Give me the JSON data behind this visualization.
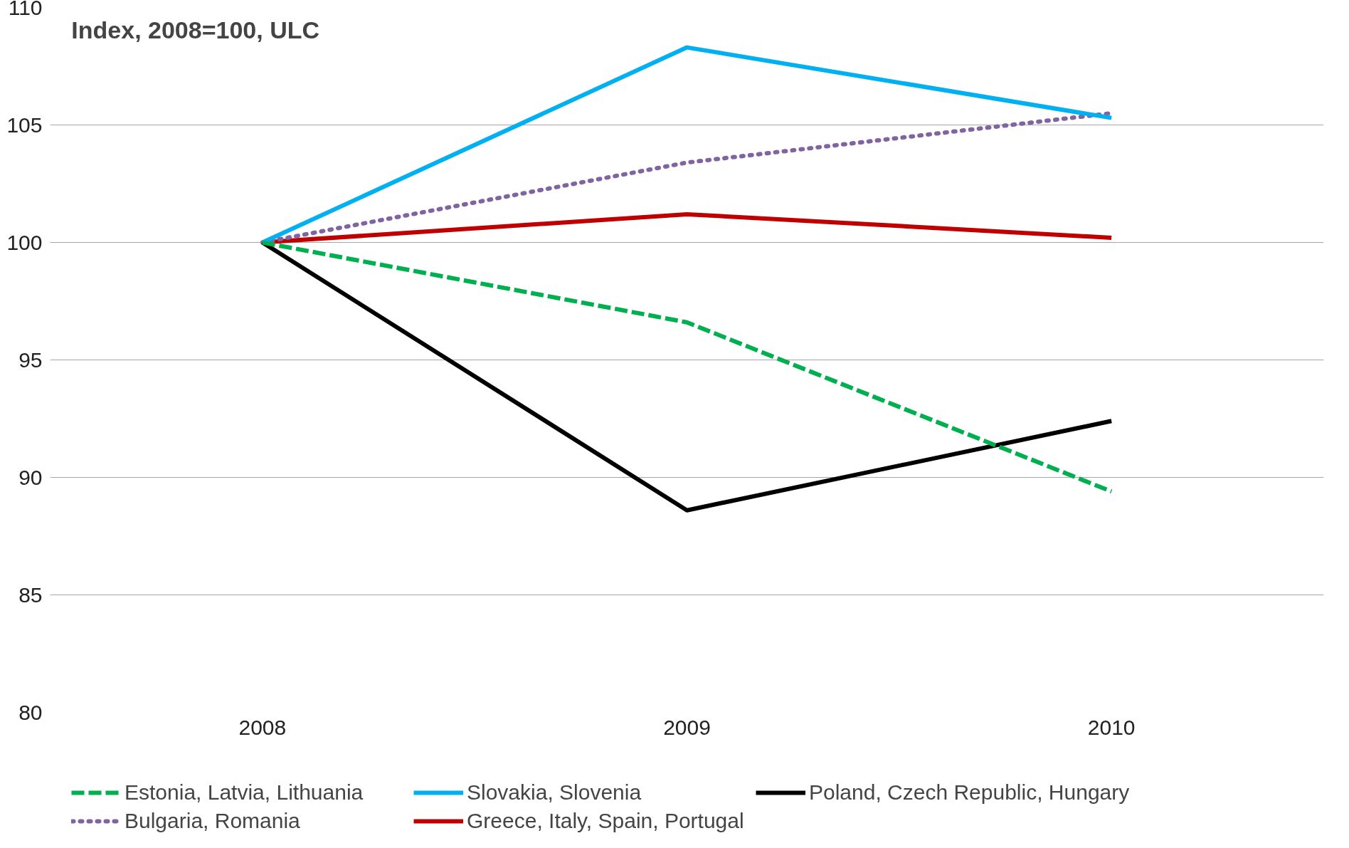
{
  "chart_data": {
    "type": "line",
    "title": "Index, 2008=100, ULC",
    "categories": [
      "2008",
      "2009",
      "2010"
    ],
    "series": [
      {
        "name": "Estonia, Latvia, Lithuania",
        "color": "#00b050",
        "line_style": "dashed",
        "values": [
          100,
          96.6,
          89.4
        ]
      },
      {
        "name": "Slovakia, Slovenia",
        "color": "#00b0f0",
        "line_style": "solid",
        "values": [
          100,
          108.3,
          105.3
        ]
      },
      {
        "name": "Poland, Czech Republic, Hungary",
        "color": "#000000",
        "line_style": "solid",
        "values": [
          100,
          88.6,
          92.4
        ]
      },
      {
        "name": "Bulgaria, Romania",
        "color": "#8064a2",
        "line_style": "dotted",
        "values": [
          100,
          103.4,
          105.5
        ]
      },
      {
        "name": "Greece, Italy, Spain, Portugal",
        "color": "#c00000",
        "line_style": "solid",
        "values": [
          100,
          101.2,
          100.2
        ]
      }
    ],
    "ylim": [
      80,
      110
    ],
    "yticks": [
      80,
      85,
      90,
      95,
      100,
      105,
      110
    ],
    "grid": "y",
    "legend": "bottom",
    "marker": "none"
  }
}
